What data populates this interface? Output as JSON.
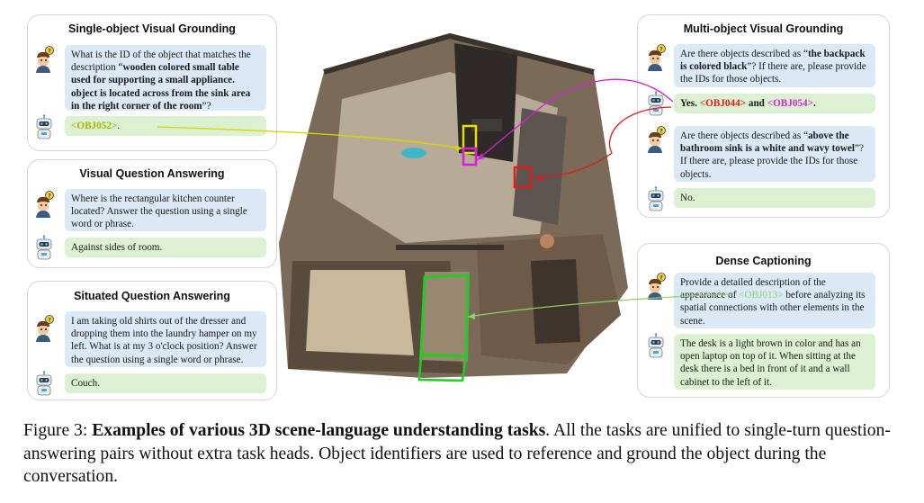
{
  "panels": {
    "svg": {
      "title": "Single-object Visual Grounding",
      "q_pre": "What is the ID of the object that matches the description “",
      "q_bold": "wooden colored small table used for supporting a small appliance. object is located across from the sink area in the right corner of the room",
      "q_post": "”?",
      "answer_id": "<OBJ052>",
      "answer_post": "."
    },
    "vqa": {
      "title": "Visual Question Answering",
      "question": "Where is the rectangular kitchen counter located? Answer the question using a single word or phrase.",
      "answer": "Against sides of room."
    },
    "sqa": {
      "title": "Situated Question Answering",
      "question": "I am taking old shirts out of the dresser and dropping them into the laundry hamper on my left. What is at my 3 o'clock position? Answer the question using a single word or phrase.",
      "answer": "Couch."
    },
    "mvg": {
      "title": "Multi-object Visual Grounding",
      "q1_pre": "Are there objects described as “",
      "q1_bold": "the backpack is colored black",
      "q1_post": "”? If there are, please provide the IDs for those objects.",
      "a1_pre": "Yes. ",
      "a1_id1": "<OBJ044>",
      "a1_mid": " and ",
      "a1_id2": "<OBJ054>",
      "a1_post": ".",
      "q2_pre": "Are there objects described as “",
      "q2_bold": "above the bathroom sink is a white and wavy towel",
      "q2_post": "”? If there are, please provide the IDs for those objects.",
      "a2": "No."
    },
    "dc": {
      "title": "Dense Captioning",
      "q_pre": "Provide a detailed description of the appearance of ",
      "q_id": "<OBJ013>",
      "q_post": " before analyzing its spatial connections with other elements in the scene.",
      "answer": "The desk is a light brown in color and has an open laptop on top of it. When sitting at the desk there is a bed in front of it and a wall cabinet to the left of it."
    }
  },
  "caption": {
    "label": "Figure 3: ",
    "bold": "Examples of various 3D scene-language understanding tasks",
    "rest": ". All the tasks are unified to single-turn question-answering pairs without extra task heads. Object identifiers are used to reference and ground the object during the conversation."
  },
  "colors": {
    "question_bg": "#dbe8f5",
    "answer_bg": "#dcf0d2",
    "obj052": "#a8b400",
    "obj044": "#e21b1b",
    "obj054": "#d61fd6",
    "obj013": "#8fcf6f",
    "box_green": "#22cc22"
  }
}
